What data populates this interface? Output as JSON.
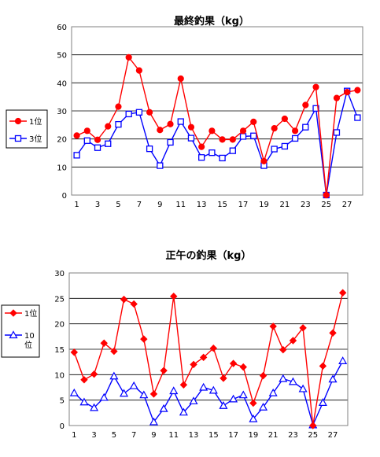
{
  "chart_data": [
    {
      "type": "line",
      "title": "最終釣果（kg）",
      "ylim": [
        0,
        60
      ],
      "ytick_step": 10,
      "x": [
        1,
        2,
        3,
        4,
        5,
        6,
        7,
        8,
        9,
        10,
        11,
        12,
        13,
        14,
        15,
        16,
        17,
        18,
        19,
        20,
        21,
        22,
        23,
        24,
        25,
        26,
        27,
        28
      ],
      "xtick_labels": [
        "1",
        "3",
        "5",
        "7",
        "9",
        "11",
        "13",
        "15",
        "17",
        "19",
        "21",
        "23",
        "25",
        "27"
      ],
      "grid": "horizontal",
      "legend_position": "left",
      "series": [
        {
          "name": "1位",
          "marker": "circle",
          "color": "#ff0000",
          "values": [
            21.2,
            22.9,
            19.7,
            24.5,
            31.5,
            49.1,
            44.4,
            29.5,
            23.2,
            25.3,
            41.5,
            24.2,
            17.2,
            22.9,
            19.8,
            19.8,
            22.9,
            26.1,
            12.1,
            23.8,
            27.2,
            22.9,
            32.1,
            38.5,
            0,
            34.6,
            36.7,
            37.4
          ]
        },
        {
          "name": "3位",
          "marker": "square",
          "color": "#0000ff",
          "values": [
            14.2,
            19.4,
            16.9,
            18.3,
            25.2,
            28.9,
            29.5,
            16.5,
            10.5,
            18.8,
            26.2,
            20.3,
            13.4,
            15.1,
            13.2,
            15.8,
            20.9,
            21.1,
            10.5,
            16.4,
            17.4,
            20.2,
            24.2,
            30.9,
            0,
            22.3,
            37.1,
            27.6
          ]
        }
      ]
    },
    {
      "type": "line",
      "title": "正午の釣果（kg）",
      "ylim": [
        0,
        30
      ],
      "ytick_step": 5,
      "x": [
        1,
        2,
        3,
        4,
        5,
        6,
        7,
        8,
        9,
        10,
        11,
        12,
        13,
        14,
        15,
        16,
        17,
        18,
        19,
        20,
        21,
        22,
        23,
        24,
        25,
        26,
        27,
        28
      ],
      "xtick_labels": [
        "1",
        "3",
        "5",
        "7",
        "9",
        "11",
        "13",
        "15",
        "17",
        "19",
        "21",
        "23",
        "25",
        "27"
      ],
      "grid": "horizontal",
      "legend_position": "left",
      "series": [
        {
          "name": "1位",
          "marker": "diamond",
          "color": "#ff0000",
          "values": [
            14.4,
            9.0,
            10.1,
            16.2,
            14.6,
            24.8,
            23.9,
            17.0,
            6.2,
            10.8,
            25.4,
            8.0,
            12.0,
            13.4,
            15.2,
            9.3,
            12.2,
            11.5,
            4.4,
            9.8,
            19.5,
            14.9,
            16.7,
            19.2,
            0,
            11.7,
            18.2,
            26.1
          ]
        },
        {
          "name": "10位",
          "legend_label_lines": [
            "10",
            "位"
          ],
          "marker": "triangle",
          "color": "#0000ff",
          "values": [
            6.4,
            4.6,
            3.5,
            5.5,
            9.7,
            6.3,
            7.8,
            6.0,
            0.7,
            3.3,
            6.8,
            2.6,
            4.8,
            7.5,
            6.9,
            3.9,
            5.2,
            6.0,
            1.3,
            3.6,
            6.4,
            9.2,
            8.6,
            7.2,
            0.1,
            4.5,
            9.1,
            12.7
          ]
        }
      ]
    }
  ]
}
